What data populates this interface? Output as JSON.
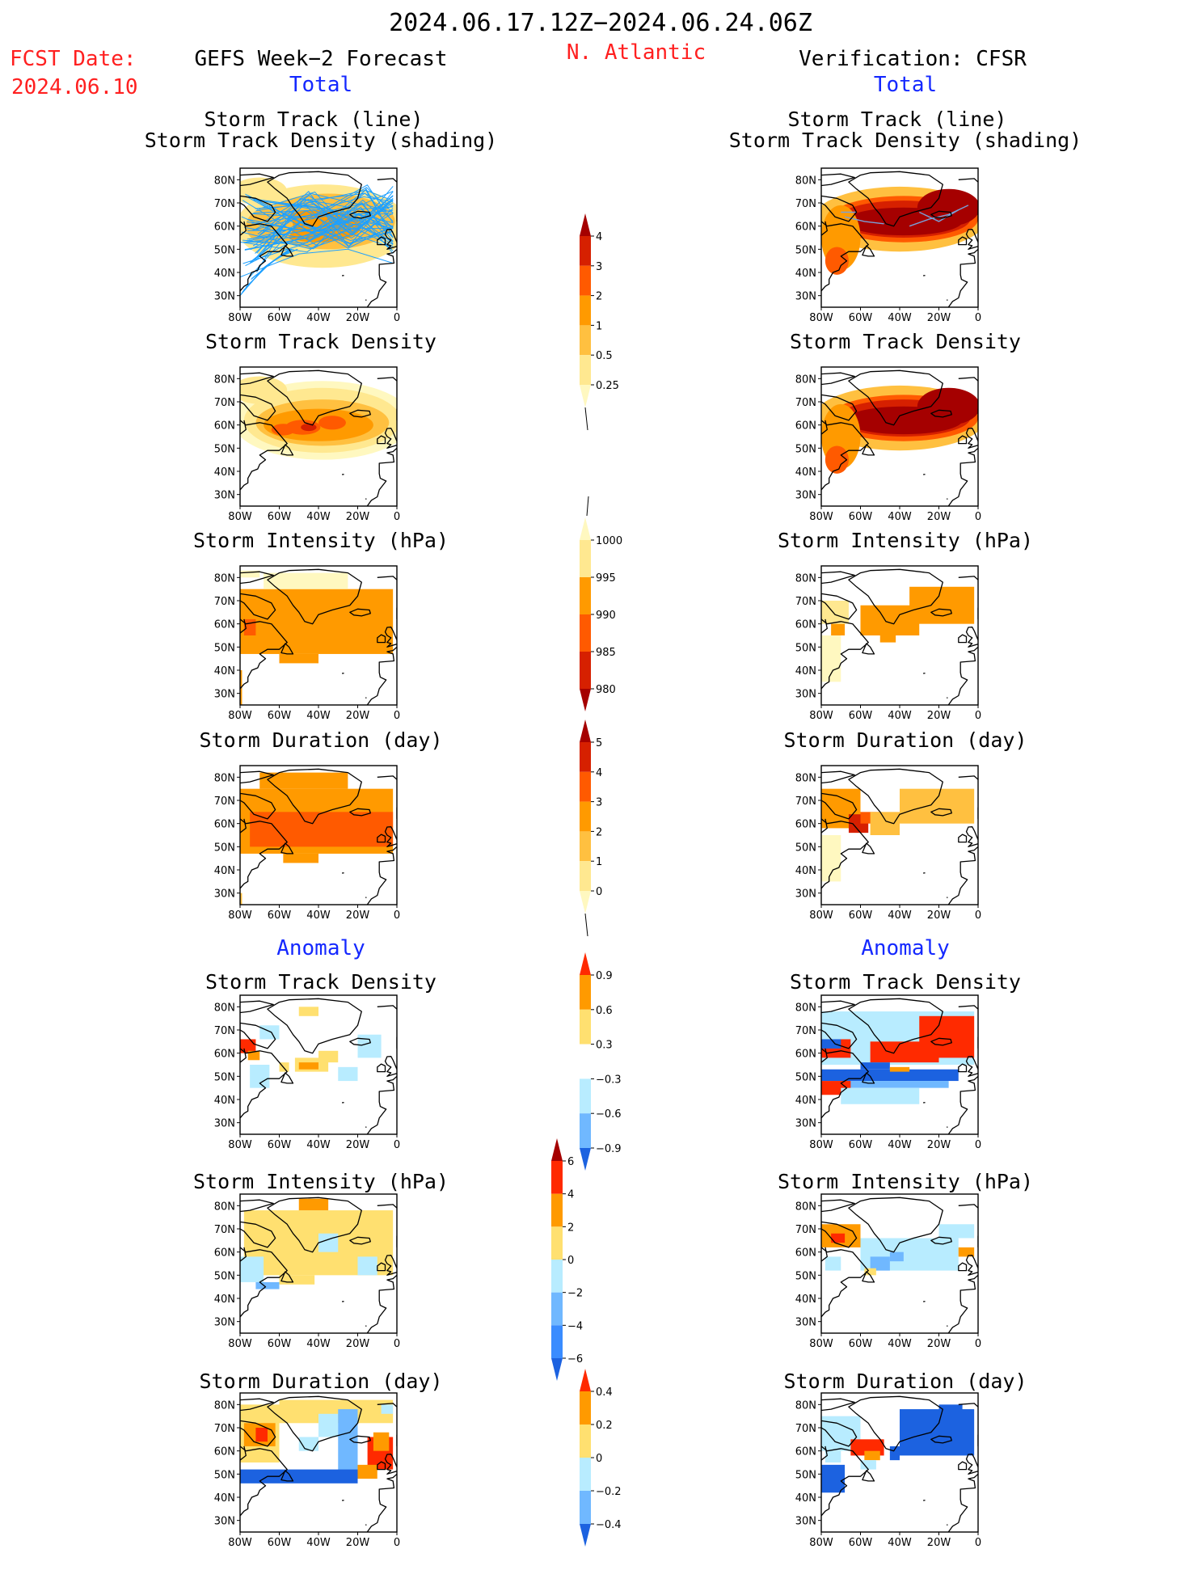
{
  "header": {
    "date_range": "2024.06.17.12Z−2024.06.24.06Z",
    "region": "N. Atlantic",
    "fcst_label": "FCST Date:",
    "fcst_date": "2024.06.10",
    "left_title": "GEFS Week−2 Forecast",
    "right_title": "Verification: CFSR",
    "section_total": "Total",
    "section_anomaly": "Anomaly"
  },
  "panel_titles": {
    "track_line": "Storm Track (line)",
    "track_shading": "Storm Track Density (shading)",
    "density": "Storm Track Density",
    "intensity": "Storm Intensity (hPa)",
    "duration": "Storm Duration (day)"
  },
  "colors": {
    "title_red": "#ff2020",
    "label_blue": "#1428ff",
    "track_line": "#1ea0ff",
    "verif_line": "#7aa0d8"
  },
  "chart_data": [
    {
      "type": "heatmap",
      "name": "map-axes",
      "x_ticks": [
        "80W",
        "60W",
        "40W",
        "20W",
        "0"
      ],
      "y_ticks": [
        "80N",
        "70N",
        "60N",
        "50N",
        "40N",
        "30N"
      ],
      "xlim": [
        -80,
        0
      ],
      "ylim": [
        25,
        85
      ]
    },
    {
      "type": "heatmap",
      "name": "total-density-colorbar",
      "levels": [
        "4",
        "3",
        "2",
        "1",
        "0.5",
        "0.25"
      ],
      "colors": [
        "#a50000",
        "#d62000",
        "#ff5a00",
        "#ff9a00",
        "#ffc040",
        "#ffe890",
        "#fff8c0"
      ]
    },
    {
      "type": "heatmap",
      "name": "total-intensity-colorbar",
      "levels": [
        "1000",
        "995",
        "990",
        "985",
        "980"
      ],
      "colors": [
        "#fff8c0",
        "#ffe890",
        "#ff9a00",
        "#ff5a00",
        "#d62000",
        "#a50000"
      ]
    },
    {
      "type": "heatmap",
      "name": "total-duration-colorbar",
      "levels": [
        "5",
        "4",
        "3",
        "2",
        "1",
        "0"
      ],
      "colors": [
        "#a50000",
        "#d62000",
        "#ff5a00",
        "#ff9a00",
        "#ffc040",
        "#ffe890",
        "#fff8c0"
      ]
    },
    {
      "type": "heatmap",
      "name": "anom-density-colorbar",
      "levels": [
        "0.9",
        "0.6",
        "0.3",
        "−0.3",
        "−0.6",
        "−0.9"
      ],
      "colors": [
        "#ff2a00",
        "#ff9a00",
        "#ffe070",
        "#ffffff",
        "#b8ecff",
        "#70b8ff",
        "#1c62e0"
      ]
    },
    {
      "type": "heatmap",
      "name": "anom-intensity-colorbar",
      "levels": [
        "6",
        "4",
        "2",
        "0",
        "−2",
        "−4",
        "−6"
      ],
      "colors": [
        "#a50000",
        "#ff2a00",
        "#ff9a00",
        "#ffe070",
        "#b8ecff",
        "#70b8ff",
        "#3a8cff",
        "#1c62e0"
      ]
    },
    {
      "type": "heatmap",
      "name": "anom-duration-colorbar",
      "levels": [
        "0.4",
        "0.2",
        "0",
        "−0.2",
        "−0.4"
      ],
      "colors": [
        "#ff2a00",
        "#ff9a00",
        "#ffe070",
        "#b8ecff",
        "#70b8ff",
        "#1c62e0"
      ]
    }
  ]
}
